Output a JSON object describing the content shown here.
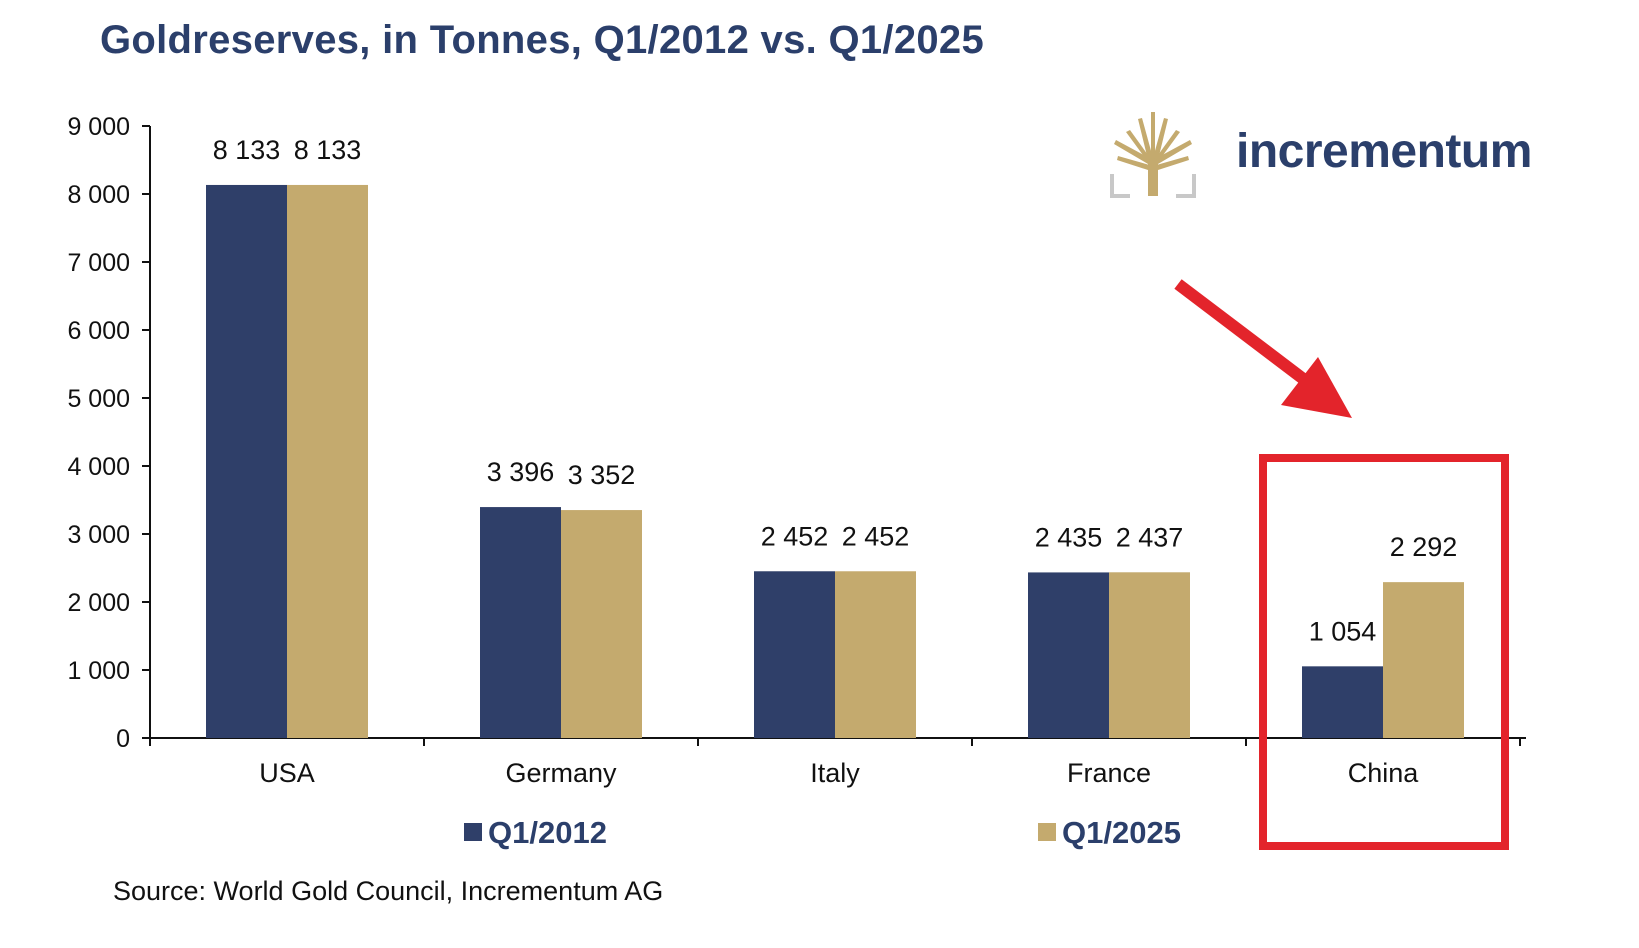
{
  "colors": {
    "series_2012": "#2f3f69",
    "series_2025": "#c4aa6e",
    "highlight": "#e3242b",
    "title": "#2b3f6b"
  },
  "chart_data": {
    "type": "bar",
    "title": "Goldreserves, in Tonnes, Q1/2012 vs. Q1/2025",
    "xlabel": "",
    "ylabel": "",
    "ylim": [
      0,
      9000
    ],
    "y_ticks": [
      {
        "value": 0,
        "label": "0"
      },
      {
        "value": 1000,
        "label": "1 000"
      },
      {
        "value": 2000,
        "label": "2 000"
      },
      {
        "value": 3000,
        "label": "3 000"
      },
      {
        "value": 4000,
        "label": "4 000"
      },
      {
        "value": 5000,
        "label": "5 000"
      },
      {
        "value": 6000,
        "label": "6 000"
      },
      {
        "value": 7000,
        "label": "7 000"
      },
      {
        "value": 8000,
        "label": "8 000"
      },
      {
        "value": 9000,
        "label": "9 000"
      }
    ],
    "categories": [
      "USA",
      "Germany",
      "Italy",
      "France",
      "China"
    ],
    "series": [
      {
        "name": "Q1/2012",
        "values": [
          8133,
          3396,
          2452,
          2435,
          1054
        ],
        "labels": [
          "8 133",
          "3 396",
          "2 452",
          "2 435",
          "1 054"
        ]
      },
      {
        "name": "Q1/2025",
        "values": [
          8133,
          3352,
          2452,
          2437,
          2292
        ],
        "labels": [
          "8 133",
          "3 352",
          "2 452",
          "2 437",
          "2 292"
        ]
      }
    ],
    "legend_position": "bottom",
    "grid": false,
    "highlighted_category": "China",
    "annotation": "red arrow pointing to red box around China"
  },
  "source": "Source: World Gold Council, Incrementum AG",
  "logo": {
    "text": "incrementum",
    "icon": "tree-icon"
  }
}
